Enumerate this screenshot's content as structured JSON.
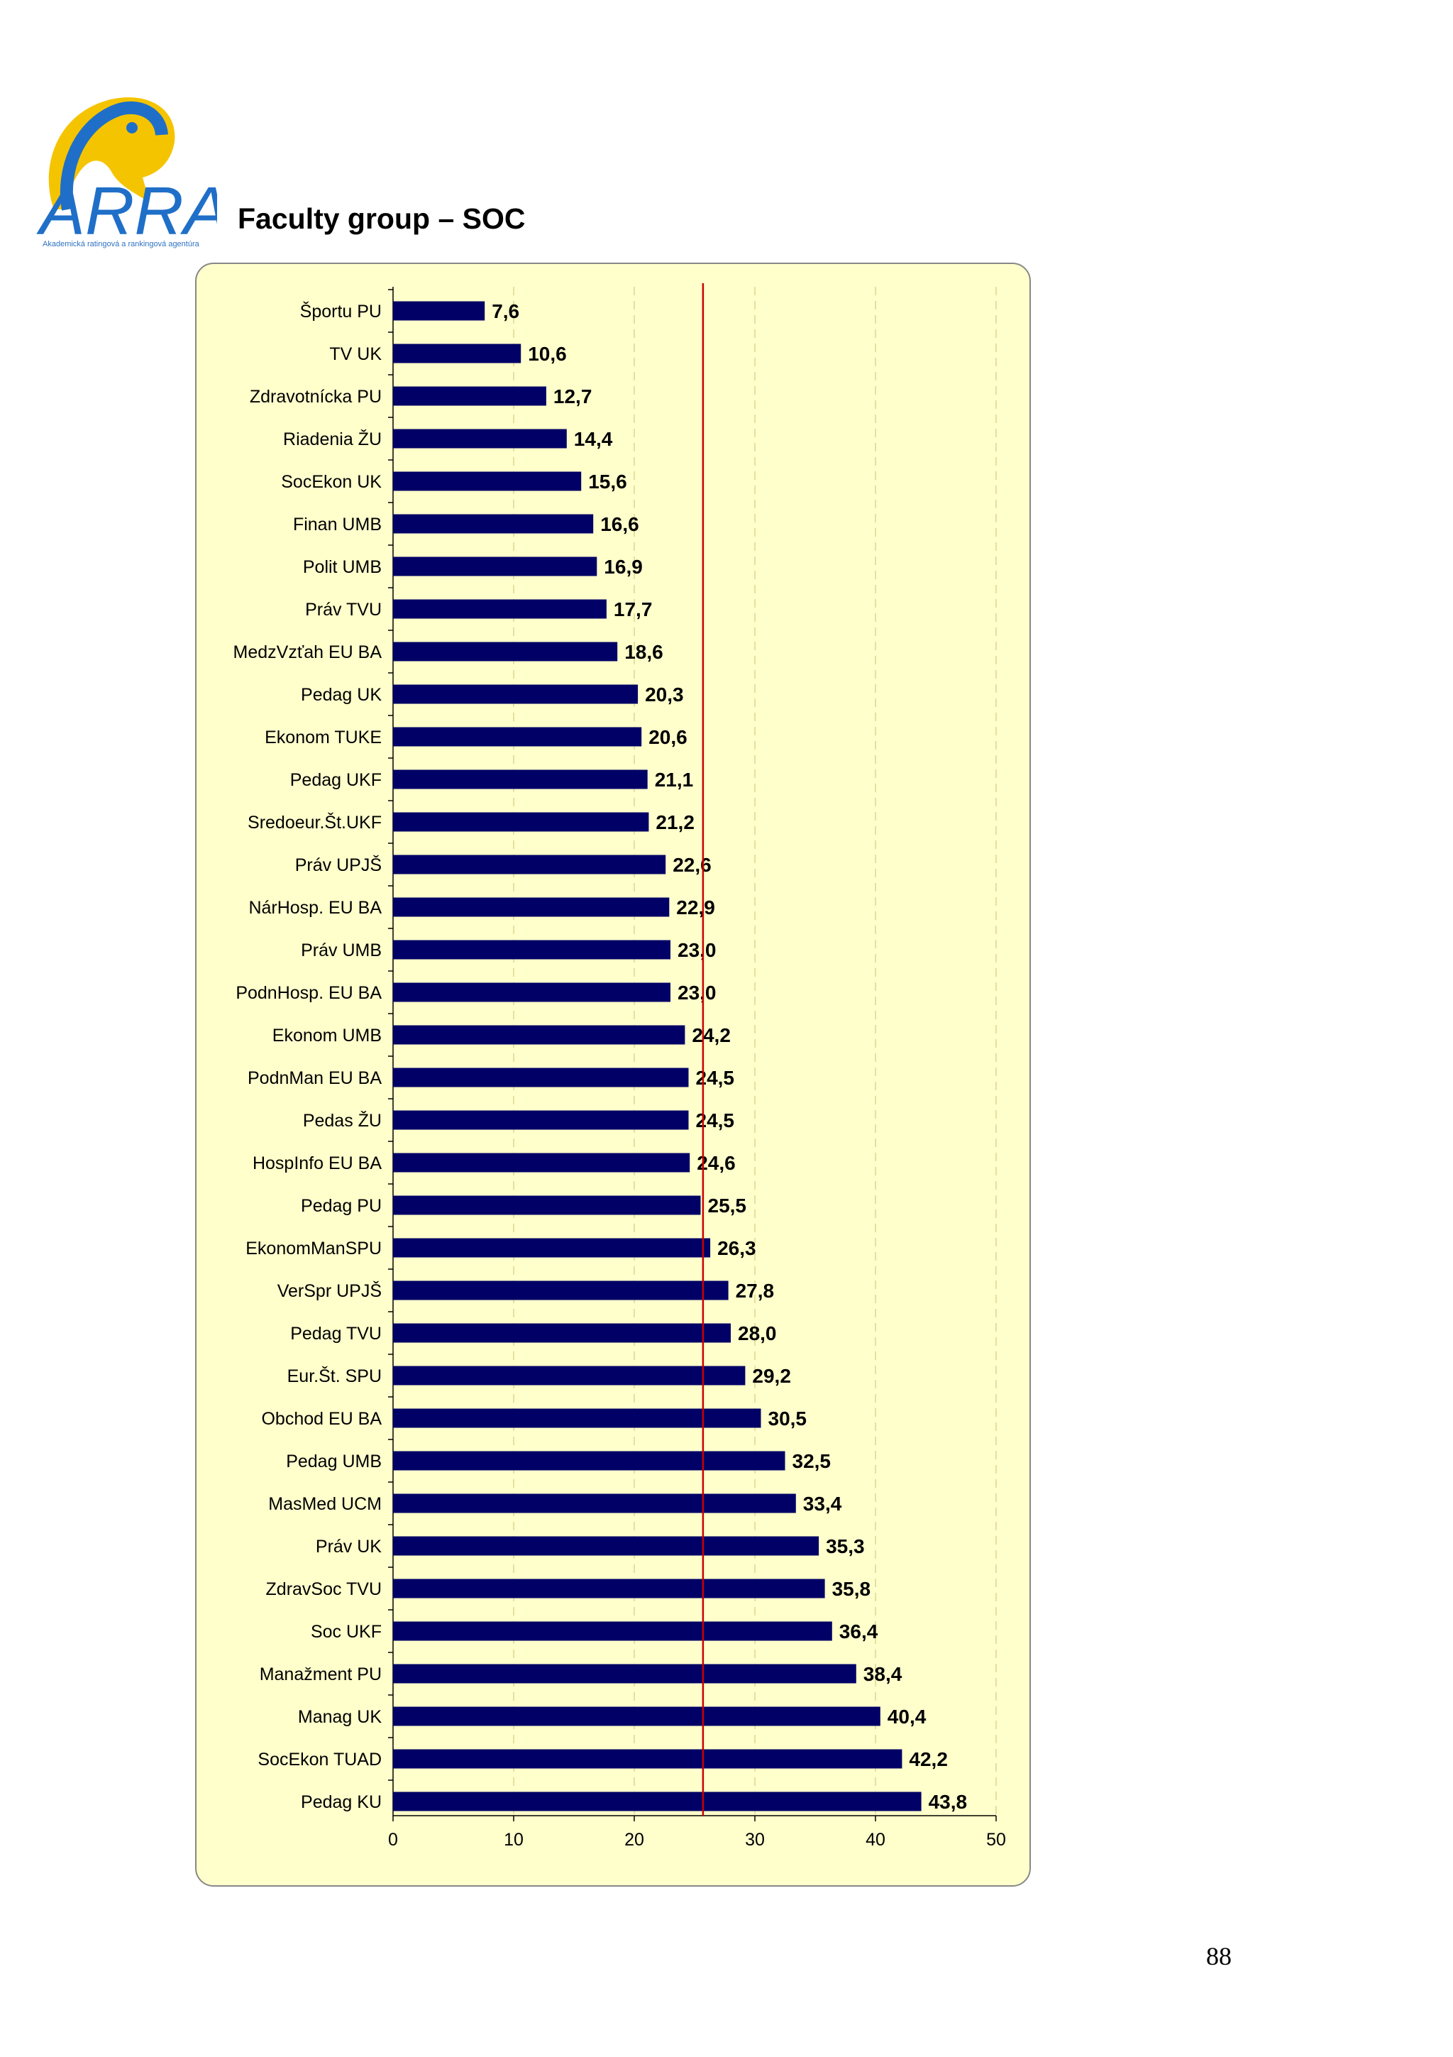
{
  "header": {
    "title": "Faculty group – SOC",
    "logo_text": "ARRA",
    "logo_subtext": "Akademická ratingová a rankingová agentúra"
  },
  "colors": {
    "bar": "#000066",
    "reference_line": "#cc0000",
    "chart_background": "#ffffcc",
    "grid": "#e6e0a0",
    "logo_blue": "#1f6fc8",
    "logo_yellow": "#f5c400"
  },
  "chart_data": {
    "type": "bar",
    "orientation": "horizontal",
    "categories": [
      "Športu PU",
      "TV  UK",
      "Zdravotnícka PU",
      "Riadenia  ŽU",
      "SocEkon UK",
      "Finan UMB",
      "Polit UMB",
      "Práv TVU",
      "MedzVzťah EU BA",
      "Pedag UK",
      "Ekonom TUKE",
      "Pedag UKF",
      "Sredoeur.Št.UKF",
      "Práv UPJŠ",
      "NárHosp. EU BA",
      "Práv UMB",
      "PodnHosp. EU BA",
      "Ekonom UMB",
      "PodnMan EU BA",
      "Pedas ŽU",
      "HospInfo EU BA",
      "Pedag PU",
      "EkonomManSPU",
      "VerSpr UPJŠ",
      "Pedag TVU",
      "Eur.Št. SPU",
      "Obchod EU BA",
      "Pedag UMB",
      "MasMed UCM",
      "Práv UK",
      "ZdravSoc TVU",
      "Soc UKF",
      "Manažment PU",
      "Manag UK",
      "SocEkon TUAD",
      "Pedag KU"
    ],
    "values": [
      7.6,
      10.6,
      12.7,
      14.4,
      15.6,
      16.6,
      16.9,
      17.7,
      18.6,
      20.3,
      20.6,
      21.1,
      21.2,
      22.6,
      22.9,
      23.0,
      23.0,
      24.2,
      24.5,
      24.5,
      24.6,
      25.5,
      26.3,
      27.8,
      28.0,
      29.2,
      30.5,
      32.5,
      33.4,
      35.3,
      35.8,
      36.4,
      38.4,
      40.4,
      42.2,
      43.8
    ],
    "value_labels": [
      "7,6",
      "10,6",
      "12,7",
      "14,4",
      "15,6",
      "16,6",
      "16,9",
      "17,7",
      "18,6",
      "20,3",
      "20,6",
      "21,1",
      "21,2",
      "22,6",
      "22,9",
      "23,0",
      "23,0",
      "24,2",
      "24,5",
      "24,5",
      "24,6",
      "25,5",
      "26,3",
      "27,8",
      "28,0",
      "29,2",
      "30,5",
      "32,5",
      "33,4",
      "35,3",
      "35,8",
      "36,4",
      "38,4",
      "40,4",
      "42,2",
      "43,8"
    ],
    "xlim": [
      0,
      50
    ],
    "xticks": [
      "0",
      "10",
      "20",
      "30",
      "40",
      "50"
    ],
    "reference_line_value": 25.7,
    "grid": "vertical dashed",
    "title": "",
    "xlabel": "",
    "ylabel": ""
  },
  "page_number": "88"
}
